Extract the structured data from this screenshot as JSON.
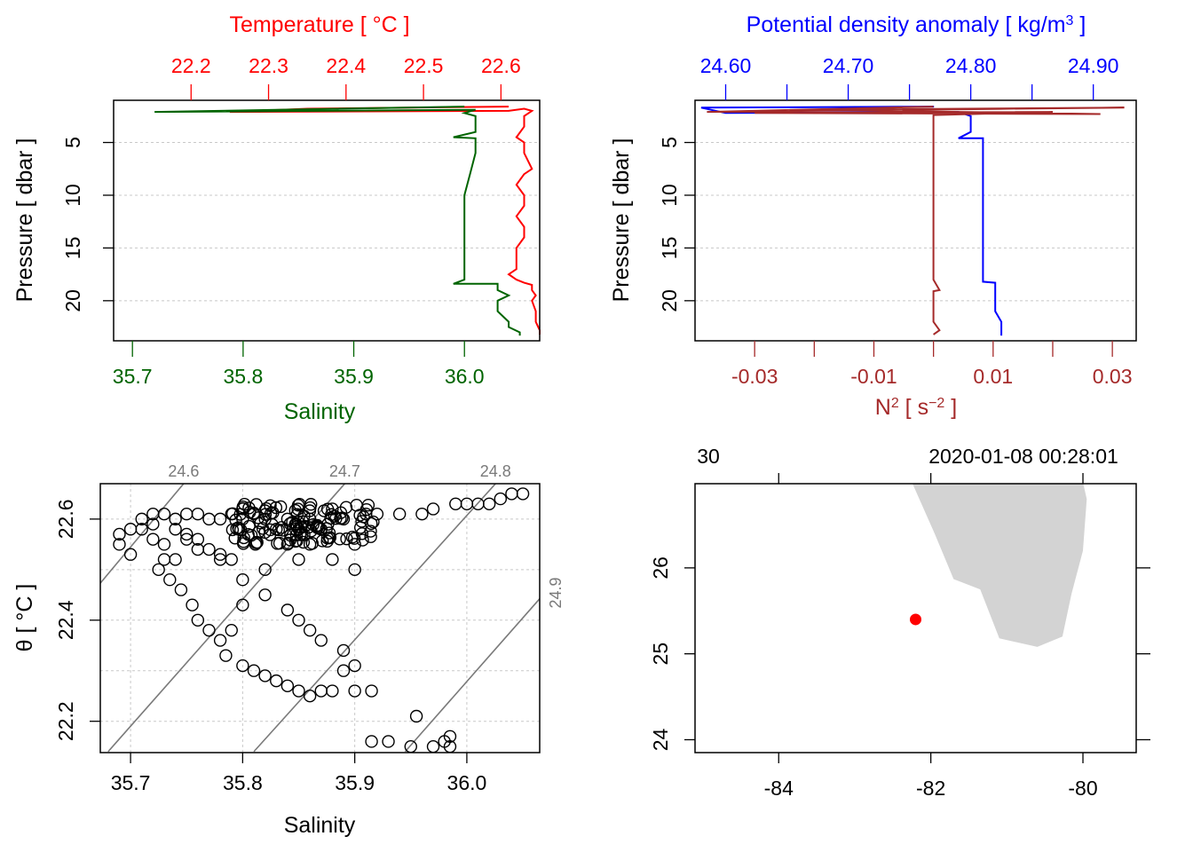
{
  "chart_data": [
    {
      "type": "line",
      "id": "profile-ts",
      "top_axis": {
        "label": "Temperature [ °C ]",
        "color": "#ff0000",
        "ticks": [
          22.2,
          22.3,
          22.4,
          22.5,
          22.6
        ],
        "tick_labels": [
          "22.2",
          "22.3",
          "22.4",
          "22.5",
          "22.6"
        ],
        "range": [
          22.1,
          22.65
        ]
      },
      "bottom_axis": {
        "label": "Salinity",
        "color": "#006400",
        "ticks": [
          35.7,
          35.8,
          35.9,
          36.0
        ],
        "tick_labels": [
          "35.7",
          "35.8",
          "35.9",
          "36.0"
        ],
        "range": [
          35.683,
          36.068
        ]
      },
      "y_axis": {
        "label": "Pressure [ dbar ]",
        "ticks": [
          5,
          10,
          15,
          20
        ],
        "tick_labels": [
          "5",
          "10",
          "15",
          "20"
        ],
        "range": [
          23.8,
          1.0
        ]
      },
      "series": [
        {
          "name": "Temperature",
          "color": "#ff0000",
          "points": [
            [
              22.61,
              1.6
            ],
            [
              22.35,
              1.8
            ],
            [
              22.25,
              2.1
            ],
            [
              22.61,
              2.0
            ],
            [
              22.63,
              1.8
            ],
            [
              22.64,
              2.0
            ],
            [
              22.63,
              2.5
            ],
            [
              22.63,
              3.5
            ],
            [
              22.62,
              4.5
            ],
            [
              22.63,
              5.0
            ],
            [
              22.63,
              6.0
            ],
            [
              22.64,
              7.5
            ],
            [
              22.63,
              8.0
            ],
            [
              22.62,
              9.0
            ],
            [
              22.63,
              10.0
            ],
            [
              22.63,
              11.0
            ],
            [
              22.62,
              12.0
            ],
            [
              22.63,
              13.0
            ],
            [
              22.63,
              14.0
            ],
            [
              22.62,
              15.0
            ],
            [
              22.62,
              16.0
            ],
            [
              22.62,
              17.0
            ],
            [
              22.61,
              17.5
            ],
            [
              22.62,
              18.0
            ],
            [
              22.63,
              18.3
            ],
            [
              22.64,
              18.5
            ],
            [
              22.64,
              19.0
            ],
            [
              22.645,
              19.5
            ],
            [
              22.64,
              20.0
            ],
            [
              22.645,
              21.0
            ],
            [
              22.645,
              22.0
            ],
            [
              22.65,
              22.8
            ],
            [
              22.65,
              23.2
            ]
          ]
        },
        {
          "name": "Salinity",
          "color": "#006400",
          "points": [
            [
              36.0,
              1.6
            ],
            [
              35.72,
              2.1
            ],
            [
              36.01,
              1.9
            ],
            [
              36.0,
              2.2
            ],
            [
              36.01,
              2.5
            ],
            [
              36.01,
              3.0
            ],
            [
              36.01,
              4.0
            ],
            [
              35.99,
              4.5
            ],
            [
              36.01,
              4.6
            ],
            [
              36.01,
              6.0
            ],
            [
              36.005,
              8.0
            ],
            [
              36.0,
              10.0
            ],
            [
              36.0,
              12.0
            ],
            [
              36.0,
              14.0
            ],
            [
              36.0,
              15.5
            ],
            [
              36.0,
              17.0
            ],
            [
              36.0,
              18.0
            ],
            [
              35.99,
              18.4
            ],
            [
              36.03,
              18.4
            ],
            [
              36.03,
              19.0
            ],
            [
              36.04,
              19.5
            ],
            [
              36.03,
              20.0
            ],
            [
              36.03,
              21.0
            ],
            [
              36.04,
              22.0
            ],
            [
              36.04,
              22.5
            ],
            [
              36.05,
              23.0
            ],
            [
              36.05,
              23.3
            ]
          ]
        }
      ]
    },
    {
      "type": "line",
      "id": "profile-density",
      "top_axis": {
        "label_main": "Potential density anomaly [ kg/m",
        "label_sup": "3",
        "label_end": " ]",
        "color": "#0000ff",
        "ticks": [
          24.6,
          24.65,
          24.7,
          24.75,
          24.8,
          24.85,
          24.9
        ],
        "tick_labels": [
          "24.60",
          "24.70",
          "24.80",
          "24.90"
        ],
        "labeled_ticks": [
          24.6,
          24.7,
          24.8,
          24.9
        ],
        "range": [
          24.575,
          24.935
        ]
      },
      "bottom_axis": {
        "label_main": "N",
        "label_sup": "2",
        "label_unit": " [ s",
        "label_unit_sup": "−2",
        "label_end": " ]",
        "color": "#a52a2a",
        "ticks": [
          -0.03,
          -0.02,
          -0.01,
          0.0,
          0.01,
          0.02,
          0.03
        ],
        "tick_labels": [
          "-0.03",
          "-0.01",
          "0.01",
          "0.03"
        ],
        "labeled_ticks": [
          -0.03,
          -0.01,
          0.01,
          0.03
        ],
        "range": [
          -0.04,
          0.034
        ]
      },
      "y_axis": {
        "label": "Pressure [ dbar ]",
        "ticks": [
          5,
          10,
          15,
          20
        ],
        "tick_labels": [
          "5",
          "10",
          "15",
          "20"
        ],
        "range": [
          23.8,
          1.0
        ]
      },
      "series": [
        {
          "name": "Potential density anomaly",
          "color": "#0000ff",
          "points": [
            [
              24.77,
              1.6
            ],
            [
              24.58,
              1.7
            ],
            [
              24.6,
              2.2
            ],
            [
              24.79,
              2.1
            ],
            [
              24.8,
              2.5
            ],
            [
              24.8,
              4.0
            ],
            [
              24.79,
              4.6
            ],
            [
              24.81,
              4.6
            ],
            [
              24.81,
              6.0
            ],
            [
              24.81,
              8.0
            ],
            [
              24.81,
              10.0
            ],
            [
              24.81,
              12.0
            ],
            [
              24.81,
              15.0
            ],
            [
              24.81,
              17.0
            ],
            [
              24.81,
              18.2
            ],
            [
              24.82,
              18.3
            ],
            [
              24.82,
              19.5
            ],
            [
              24.82,
              21.0
            ],
            [
              24.825,
              22.0
            ],
            [
              24.825,
              23.0
            ],
            [
              24.825,
              23.3
            ]
          ]
        },
        {
          "name": "N2",
          "color": "#a52a2a",
          "points": [
            [
              0.0,
              1.6
            ],
            [
              -0.038,
              2.1
            ],
            [
              0.032,
              1.7
            ],
            [
              -0.02,
              1.9
            ],
            [
              0.028,
              2.3
            ],
            [
              -0.03,
              2.2
            ],
            [
              0.02,
              2.1
            ],
            [
              0.0,
              2.4
            ],
            [
              0.0,
              3.0
            ],
            [
              0.0,
              5.0
            ],
            [
              0.0,
              8.0
            ],
            [
              0.0,
              10.0
            ],
            [
              0.0,
              12.0
            ],
            [
              0.0,
              15.0
            ],
            [
              0.0,
              18.0
            ],
            [
              0.001,
              19.0
            ],
            [
              0.0,
              19.1
            ],
            [
              0.0,
              21.0
            ],
            [
              0.0,
              22.0
            ],
            [
              0.001,
              22.8
            ],
            [
              0.0,
              23.2
            ]
          ]
        }
      ]
    },
    {
      "type": "scatter",
      "id": "ts-diagram",
      "xlabel": "Salinity",
      "ylabel_symbol": "θ",
      "ylabel_unit": " [ °C ]",
      "x_ticks": [
        35.7,
        35.8,
        35.9,
        36.0
      ],
      "x_tick_labels": [
        "35.7",
        "35.8",
        "35.9",
        "36.0"
      ],
      "y_ticks": [
        22.2,
        22.4,
        22.6
      ],
      "y_tick_labels": [
        "22.2",
        "22.4",
        "22.6"
      ],
      "x_range": [
        35.673,
        36.065
      ],
      "y_range": [
        22.138,
        22.67
      ],
      "isopycnals": [
        {
          "label": "24.6",
          "x1": 35.668,
          "y1": 22.46,
          "x2": 35.77,
          "y2": 22.73
        },
        {
          "label": "24.7",
          "x1": 35.68,
          "y1": 22.14,
          "x2": 35.915,
          "y2": 22.73
        },
        {
          "label": "24.8",
          "x1": 35.81,
          "y1": 22.14,
          "x2": 36.05,
          "y2": 22.73
        },
        {
          "label": "24.9",
          "x1": 35.945,
          "y1": 22.14,
          "x2": 36.068,
          "y2": 22.45
        }
      ],
      "points": [
        [
          35.69,
          22.57
        ],
        [
          35.69,
          22.55
        ],
        [
          35.7,
          22.58
        ],
        [
          35.7,
          22.53
        ],
        [
          35.71,
          22.6
        ],
        [
          35.71,
          22.58
        ],
        [
          35.72,
          22.61
        ],
        [
          35.72,
          22.59
        ],
        [
          35.72,
          22.56
        ],
        [
          35.73,
          22.61
        ],
        [
          35.73,
          22.55
        ],
        [
          35.73,
          22.52
        ],
        [
          35.74,
          22.6
        ],
        [
          35.74,
          22.52
        ],
        [
          35.75,
          22.61
        ],
        [
          35.75,
          22.57
        ],
        [
          35.76,
          22.61
        ],
        [
          35.76,
          22.56
        ],
        [
          35.77,
          22.6
        ],
        [
          35.77,
          22.54
        ],
        [
          35.78,
          22.6
        ],
        [
          35.78,
          22.53
        ],
        [
          35.79,
          22.61
        ],
        [
          35.79,
          22.52
        ],
        [
          35.8,
          22.6
        ],
        [
          35.81,
          22.61
        ],
        [
          35.82,
          22.6
        ],
        [
          35.82,
          22.5
        ],
        [
          35.83,
          22.58
        ],
        [
          35.84,
          22.6
        ],
        [
          35.84,
          22.55
        ],
        [
          35.85,
          22.58
        ],
        [
          35.85,
          22.52
        ],
        [
          35.86,
          22.6
        ],
        [
          35.86,
          22.55
        ],
        [
          35.87,
          22.58
        ],
        [
          35.88,
          22.62
        ],
        [
          35.88,
          22.52
        ],
        [
          35.89,
          22.6
        ],
        [
          35.9,
          22.55
        ],
        [
          35.9,
          22.5
        ],
        [
          35.91,
          22.61
        ],
        [
          35.92,
          22.61
        ],
        [
          35.94,
          22.61
        ],
        [
          35.96,
          22.61
        ],
        [
          35.97,
          22.62
        ],
        [
          35.99,
          22.63
        ],
        [
          36.0,
          22.63
        ],
        [
          36.01,
          22.63
        ],
        [
          36.02,
          22.63
        ],
        [
          36.03,
          22.64
        ],
        [
          36.04,
          22.65
        ],
        [
          36.05,
          22.65
        ],
        [
          35.725,
          22.5
        ],
        [
          35.735,
          22.48
        ],
        [
          35.745,
          22.46
        ],
        [
          35.755,
          22.43
        ],
        [
          35.76,
          22.4
        ],
        [
          35.77,
          22.38
        ],
        [
          35.78,
          22.36
        ],
        [
          35.785,
          22.33
        ],
        [
          35.8,
          22.31
        ],
        [
          35.81,
          22.3
        ],
        [
          35.82,
          22.29
        ],
        [
          35.83,
          22.28
        ],
        [
          35.84,
          22.27
        ],
        [
          35.85,
          22.26
        ],
        [
          35.86,
          22.25
        ],
        [
          35.87,
          22.26
        ],
        [
          35.88,
          22.26
        ],
        [
          35.9,
          22.26
        ],
        [
          35.915,
          22.26
        ],
        [
          35.89,
          22.3
        ],
        [
          35.9,
          22.31
        ],
        [
          35.89,
          22.34
        ],
        [
          35.87,
          22.36
        ],
        [
          35.86,
          22.38
        ],
        [
          35.85,
          22.4
        ],
        [
          35.84,
          22.42
        ],
        [
          35.82,
          22.45
        ],
        [
          35.8,
          22.48
        ],
        [
          35.78,
          22.52
        ],
        [
          35.76,
          22.54
        ],
        [
          35.75,
          22.56
        ],
        [
          35.74,
          22.58
        ],
        [
          35.8,
          22.43
        ],
        [
          35.79,
          22.38
        ],
        [
          35.955,
          22.21
        ],
        [
          35.915,
          22.16
        ],
        [
          35.93,
          22.16
        ],
        [
          35.95,
          22.15
        ],
        [
          35.97,
          22.15
        ],
        [
          35.98,
          22.16
        ],
        [
          35.985,
          22.15
        ],
        [
          35.985,
          22.17
        ]
      ],
      "dense_band": {
        "x": [
          35.79,
          35.92
        ],
        "y": [
          22.55,
          22.63
        ],
        "n": 120
      }
    },
    {
      "type": "map",
      "id": "station-map",
      "top_text_left": "30",
      "top_text_right": "2020-01-08 00:28:01",
      "x_ticks": [
        -84,
        -82,
        -80
      ],
      "x_tick_labels": [
        "-84",
        "-82",
        "-80"
      ],
      "y_ticks": [
        24,
        25,
        26
      ],
      "y_tick_labels": [
        "24",
        "25",
        "26"
      ],
      "x_range": [
        -85.1,
        -79.3
      ],
      "y_range": [
        23.85,
        26.98
      ],
      "land_color": "#d3d3d3",
      "station_color": "#ff0000",
      "station": {
        "lon": -82.2,
        "lat": 25.4
      },
      "land_outline": [
        [
          -81.95,
          27.0
        ],
        [
          -80.0,
          27.0
        ],
        [
          -79.95,
          26.8
        ],
        [
          -80.0,
          26.2
        ],
        [
          -80.15,
          25.7
        ],
        [
          -80.27,
          25.2
        ],
        [
          -80.6,
          25.08
        ],
        [
          -81.1,
          25.18
        ],
        [
          -81.35,
          25.75
        ],
        [
          -81.7,
          25.87
        ],
        [
          -81.95,
          26.4
        ],
        [
          -82.25,
          27.0
        ]
      ]
    }
  ]
}
